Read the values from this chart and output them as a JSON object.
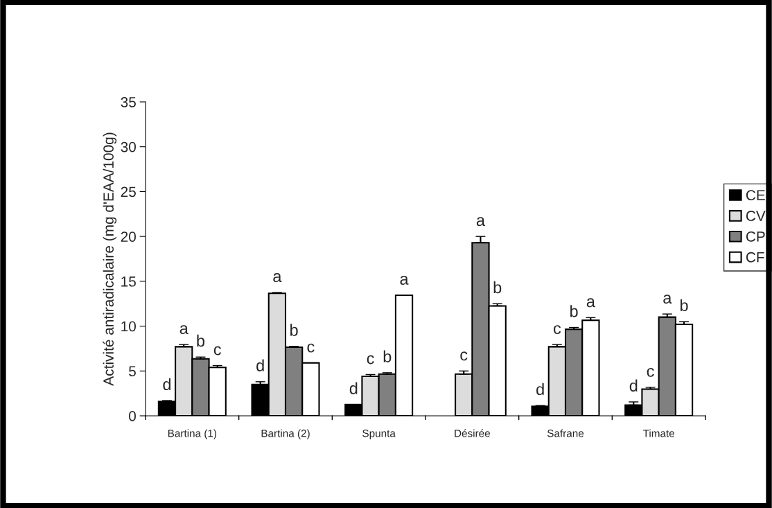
{
  "chart_data": {
    "type": "bar",
    "ylabel": "Activité antiradicalaire (mg d'EAA/100g)",
    "categories": [
      "Bartina (1)",
      "Bartina (2)",
      "Spunta",
      "Désirée",
      "Safrane",
      "Timate"
    ],
    "series": [
      {
        "name": "CE",
        "color": "#000000",
        "values": [
          1.6,
          3.5,
          1.25,
          null,
          1.05,
          1.2
        ],
        "errors": [
          [
            1.6,
            1.7
          ],
          [
            3.5,
            3.8
          ],
          null,
          null,
          [
            1.05,
            1.15
          ],
          [
            1.2,
            1.55
          ]
        ],
        "value_labels": [
          "d",
          "d",
          "d",
          null,
          "d",
          "d"
        ]
      },
      {
        "name": "CV",
        "color": "#dcdcdc",
        "values": [
          7.7,
          13.65,
          4.4,
          4.65,
          7.7,
          2.98
        ],
        "errors": [
          [
            7.7,
            7.95
          ],
          [
            13.65,
            13.75
          ],
          [
            4.4,
            4.6
          ],
          [
            4.65,
            5.0
          ],
          [
            7.7,
            7.95
          ],
          [
            2.98,
            3.18
          ]
        ],
        "value_labels": [
          "a",
          "a",
          "c",
          "c",
          "c",
          "c"
        ]
      },
      {
        "name": "CP",
        "color": "#808080",
        "values": [
          6.35,
          7.65,
          4.65,
          19.3,
          9.65,
          11.0
        ],
        "errors": [
          [
            6.35,
            6.55
          ],
          [
            7.65,
            7.75
          ],
          [
            4.65,
            4.8
          ],
          [
            19.3,
            20.0
          ],
          [
            9.65,
            9.85
          ],
          [
            11.0,
            11.35
          ]
        ],
        "value_labels": [
          "b",
          "b",
          "b",
          "a",
          "b",
          "a"
        ]
      },
      {
        "name": "CF",
        "color": "#ffffff",
        "values": [
          5.4,
          5.9,
          13.45,
          12.25,
          10.65,
          10.2
        ],
        "errors": [
          [
            5.4,
            5.6
          ],
          null,
          null,
          [
            12.25,
            12.5
          ],
          [
            10.65,
            10.95
          ],
          [
            10.2,
            10.5
          ]
        ],
        "value_labels": [
          "c",
          "c",
          "a",
          "b",
          "a",
          "b"
        ]
      }
    ],
    "ylim": [
      0,
      35
    ],
    "yticks": [
      0,
      5,
      10,
      15,
      20,
      25,
      30,
      35
    ],
    "grid": false,
    "legend": "right"
  }
}
